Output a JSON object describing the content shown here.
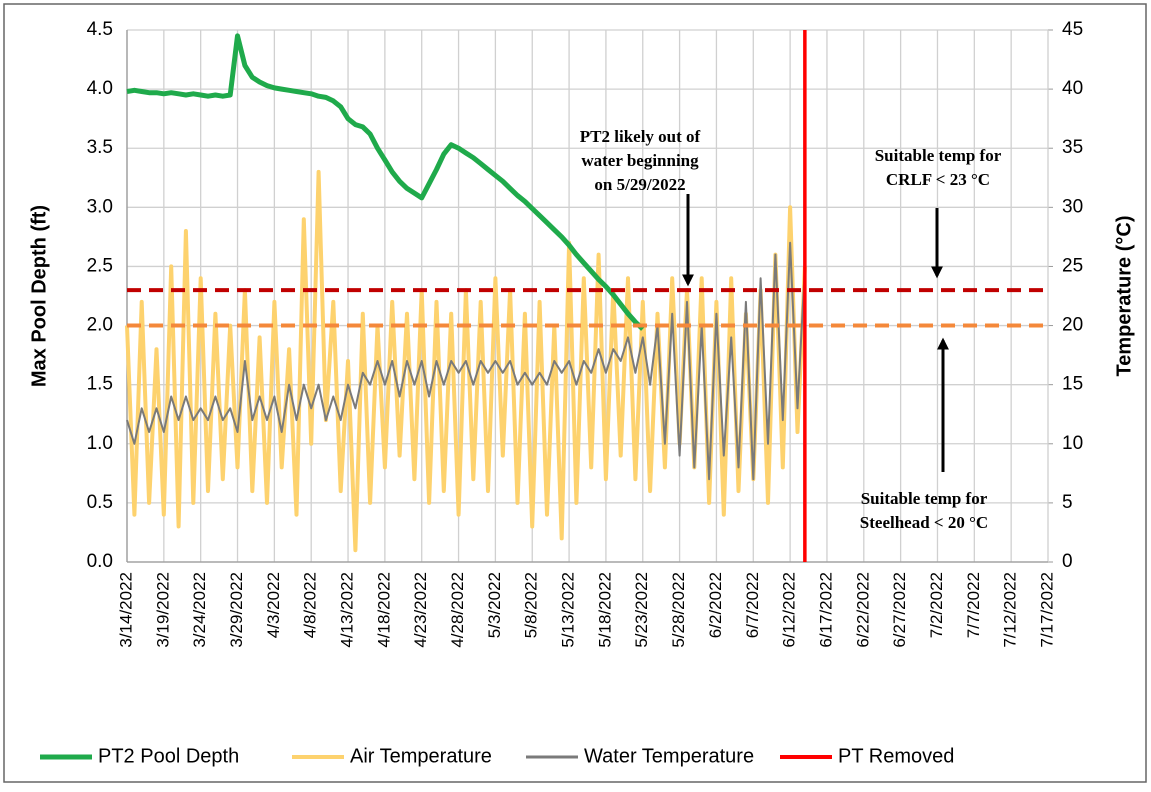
{
  "chart_data": {
    "type": "line",
    "y_label": "Max Pool Depth (ft)",
    "y2_label": "Temperature (°C)",
    "xlim": [
      "3/14/2022",
      "7/17/2022"
    ],
    "xticks": [
      "3/14/2022",
      "3/19/2022",
      "3/24/2022",
      "3/29/2022",
      "4/3/2022",
      "4/8/2022",
      "4/13/2022",
      "4/18/2022",
      "4/23/2022",
      "4/28/2022",
      "5/3/2022",
      "5/8/2022",
      "5/13/2022",
      "5/18/2022",
      "5/23/2022",
      "5/28/2022",
      "6/2/2022",
      "6/7/2022",
      "6/12/2022",
      "6/17/2022",
      "6/22/2022",
      "6/27/2022",
      "7/2/2022",
      "7/7/2022",
      "7/12/2022",
      "7/17/2022"
    ],
    "ylim": [
      0,
      4.5
    ],
    "yticks": [
      {
        "value": 0,
        "label": "0.0"
      },
      {
        "value": 0.5,
        "label": "0.5"
      },
      {
        "value": 1,
        "label": "1.0"
      },
      {
        "value": 1.5,
        "label": "1.5"
      },
      {
        "value": 2,
        "label": "2.0"
      },
      {
        "value": 2.5,
        "label": "2.5"
      },
      {
        "value": 3,
        "label": "3.0"
      },
      {
        "value": 3.5,
        "label": "3.5"
      },
      {
        "value": 4,
        "label": "4.0"
      },
      {
        "value": 4.5,
        "label": "4.5"
      }
    ],
    "y2lim": [
      0,
      45
    ],
    "y2ticks": [
      0,
      5,
      10,
      15,
      20,
      25,
      30,
      35,
      40,
      45
    ],
    "grid": true,
    "legend": "bottom",
    "x": [
      "3/14/2022",
      "3/15/2022",
      "3/16/2022",
      "3/17/2022",
      "3/18/2022",
      "3/19/2022",
      "3/20/2022",
      "3/21/2022",
      "3/22/2022",
      "3/23/2022",
      "3/24/2022",
      "3/25/2022",
      "3/26/2022",
      "3/27/2022",
      "3/28/2022",
      "3/29/2022",
      "3/30/2022",
      "3/31/2022",
      "4/1/2022",
      "4/2/2022",
      "4/3/2022",
      "4/4/2022",
      "4/5/2022",
      "4/6/2022",
      "4/7/2022",
      "4/8/2022",
      "4/9/2022",
      "4/10/2022",
      "4/11/2022",
      "4/12/2022",
      "4/13/2022",
      "4/14/2022",
      "4/15/2022",
      "4/16/2022",
      "4/17/2022",
      "4/18/2022",
      "4/19/2022",
      "4/20/2022",
      "4/21/2022",
      "4/22/2022",
      "4/23/2022",
      "4/24/2022",
      "4/25/2022",
      "4/26/2022",
      "4/27/2022",
      "4/28/2022",
      "4/29/2022",
      "4/30/2022",
      "5/1/2022",
      "5/2/2022",
      "5/3/2022",
      "5/4/2022",
      "5/5/2022",
      "5/6/2022",
      "5/7/2022",
      "5/8/2022",
      "5/9/2022",
      "5/10/2022",
      "5/11/2022",
      "5/12/2022",
      "5/13/2022",
      "5/14/2022",
      "5/15/2022",
      "5/16/2022",
      "5/17/2022",
      "5/18/2022",
      "5/19/2022",
      "5/20/2022",
      "5/21/2022",
      "5/22/2022",
      "5/23/2022",
      "5/24/2022",
      "5/25/2022",
      "5/26/2022",
      "5/27/2022",
      "5/28/2022",
      "5/29/2022",
      "5/30/2022",
      "5/31/2022",
      "6/1/2022",
      "6/2/2022",
      "6/3/2022",
      "6/4/2022",
      "6/5/2022",
      "6/6/2022",
      "6/7/2022",
      "6/8/2022",
      "6/9/2022",
      "6/10/2022",
      "6/11/2022",
      "6/12/2022",
      "6/13/2022",
      "6/14/2022"
    ],
    "series": [
      {
        "name": "PT2 Pool Depth",
        "color": "#1faa4b",
        "width": 5,
        "values": [
          3.98,
          3.99,
          3.98,
          3.97,
          3.97,
          3.96,
          3.97,
          3.96,
          3.95,
          3.96,
          3.95,
          3.94,
          3.95,
          3.94,
          3.95,
          4.45,
          4.2,
          4.1,
          4.06,
          4.03,
          4.01,
          4.0,
          3.99,
          3.98,
          3.97,
          3.96,
          3.94,
          3.93,
          3.9,
          3.85,
          3.75,
          3.7,
          3.68,
          3.62,
          3.5,
          3.4,
          3.3,
          3.22,
          3.16,
          3.12,
          3.08,
          3.2,
          3.32,
          3.45,
          3.53,
          3.5,
          3.46,
          3.42,
          3.37,
          3.32,
          3.27,
          3.22,
          3.16,
          3.1,
          3.05,
          2.99,
          2.93,
          2.87,
          2.81,
          2.75,
          2.68,
          2.6,
          2.53,
          2.46,
          2.39,
          2.33,
          2.26,
          2.18,
          2.1,
          2.03,
          1.97,
          null,
          null,
          null,
          null,
          null,
          null,
          null,
          null,
          null,
          null,
          null,
          null,
          null,
          null,
          null,
          null,
          null,
          null,
          null,
          null,
          null,
          null
        ]
      },
      {
        "name": "Air Temperature",
        "color": "#fdd26e",
        "width": 4,
        "axis": "y2",
        "values": [
          20,
          4,
          22,
          5,
          18,
          4,
          25,
          3,
          28,
          5,
          24,
          6,
          21,
          7,
          20,
          8,
          23,
          6,
          19,
          5,
          22,
          8,
          18,
          4,
          29,
          10,
          33,
          12,
          22,
          6,
          17,
          1,
          21,
          5,
          20,
          8,
          22,
          9,
          21,
          7,
          23,
          5,
          22,
          6,
          21,
          4,
          23,
          7,
          22,
          6,
          24,
          9,
          23,
          5,
          21,
          3,
          22,
          4,
          20,
          2,
          27,
          5,
          24,
          8,
          26,
          7,
          23,
          9,
          24,
          7,
          22,
          6,
          21,
          8,
          24,
          10,
          23,
          8,
          24,
          5,
          22,
          4,
          24,
          6,
          21,
          7,
          23,
          5,
          26,
          8,
          30,
          11,
          25
        ]
      },
      {
        "name": "Water Temperature",
        "color": "#7a7a7a",
        "width": 2,
        "axis": "y2",
        "values": [
          12,
          10,
          13,
          11,
          13,
          11,
          14,
          12,
          14,
          12,
          13,
          12,
          14,
          12,
          13,
          11,
          17,
          12,
          14,
          12,
          14,
          11,
          15,
          12,
          15,
          13,
          15,
          12,
          14,
          12,
          15,
          13,
          16,
          15,
          17,
          15,
          17,
          14,
          17,
          15,
          17,
          14,
          17,
          15,
          17,
          16,
          17,
          15,
          17,
          16,
          17,
          16,
          17,
          15,
          16,
          15,
          16,
          15,
          17,
          16,
          17,
          15,
          17,
          16,
          18,
          16,
          18,
          17,
          19,
          16,
          19,
          15,
          20,
          10,
          21,
          9,
          22,
          8,
          20,
          7,
          21,
          9,
          19,
          8,
          22,
          7,
          24,
          10,
          26,
          12,
          27,
          13,
          25
        ]
      }
    ],
    "vlines": [
      {
        "name": "PT Removed",
        "x": "6/14/2022",
        "color": "#ff0000"
      }
    ],
    "hlines": [
      {
        "value": 23,
        "axis": "y2",
        "color": "#c00000"
      },
      {
        "value": 20,
        "axis": "y2",
        "color": "#f4883a"
      }
    ],
    "annotations": [
      {
        "lines": [
          "PT2 likely out of",
          "water beginning",
          "on 5/29/2022"
        ]
      },
      {
        "lines": [
          "Suitable temp for",
          "CRLF < 23 °C"
        ]
      },
      {
        "lines": [
          "Suitable temp for",
          "Steelhead < 20 °C"
        ]
      }
    ]
  }
}
